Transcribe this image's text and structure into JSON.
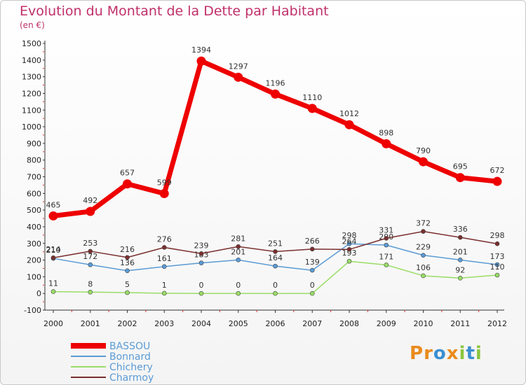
{
  "title": "Evolution du Montant de la Dette par Habitant",
  "unit": "(en €)",
  "logo": {
    "text": "Proxiti",
    "letters": [
      "P",
      "r",
      "o",
      "x",
      "i",
      "t",
      "i"
    ],
    "colors": [
      "#e98b1e",
      "#e98b1e",
      "#3b8fd0",
      "#e98b1e",
      "#8cc63f",
      "#3b8fd0",
      "#8cc63f"
    ]
  },
  "chart_data": {
    "type": "line",
    "x": [
      "2000",
      "2001",
      "2002",
      "2003",
      "2004",
      "2005",
      "2006",
      "2007",
      "2008",
      "2009",
      "2010",
      "2011",
      "2012"
    ],
    "ylim": [
      -100,
      1500
    ],
    "yticks": [
      -100,
      0,
      100,
      200,
      300,
      400,
      500,
      600,
      700,
      800,
      900,
      1000,
      1100,
      1200,
      1300,
      1400,
      1500
    ],
    "grid": false,
    "legend_position": "bottom-left",
    "series": [
      {
        "name": "BASSOU",
        "color": "#ee0000",
        "thick": true,
        "values": [
          465,
          492,
          657,
          599,
          1394,
          1297,
          1196,
          1110,
          1012,
          898,
          790,
          695,
          672
        ]
      },
      {
        "name": "Bonnard",
        "color": "#5b9bd5",
        "thick": false,
        "values": [
          210,
          172,
          136,
          161,
          183,
          201,
          164,
          139,
          298,
          290,
          229,
          201,
          173
        ]
      },
      {
        "name": "Chichery",
        "color": "#99dd66",
        "thick": false,
        "values": [
          11,
          8,
          5,
          1,
          0,
          0,
          0,
          0,
          193,
          171,
          106,
          92,
          110
        ]
      },
      {
        "name": "Charmoy",
        "color": "#7a2f2f",
        "thick": false,
        "values": [
          214,
          253,
          216,
          276,
          239,
          281,
          251,
          266,
          264,
          331,
          372,
          336,
          298
        ]
      }
    ]
  }
}
